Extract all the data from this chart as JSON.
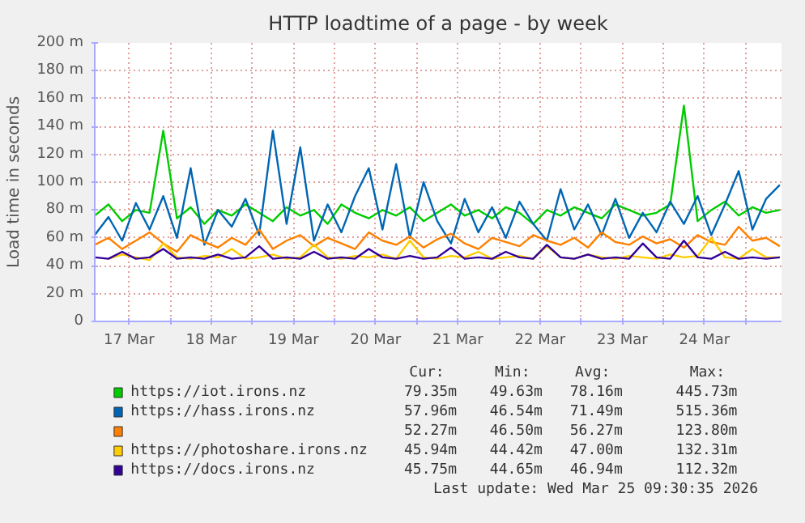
{
  "chart_data": {
    "type": "line",
    "title": "HTTP loadtime of a page - by week",
    "ylabel": "Load time in seconds",
    "x": [
      "2026-03-17T02:00",
      "2026-03-17T06:00",
      "2026-03-17T10:00",
      "2026-03-17T14:00",
      "2026-03-17T18:00",
      "2026-03-17T22:00",
      "2026-03-18T02:00",
      "2026-03-18T06:00",
      "2026-03-18T10:00",
      "2026-03-18T14:00",
      "2026-03-18T18:00",
      "2026-03-18T22:00",
      "2026-03-19T02:00",
      "2026-03-19T06:00",
      "2026-03-19T10:00",
      "2026-03-19T14:00",
      "2026-03-19T18:00",
      "2026-03-19T22:00",
      "2026-03-20T02:00",
      "2026-03-20T06:00",
      "2026-03-20T10:00",
      "2026-03-20T14:00",
      "2026-03-20T18:00",
      "2026-03-20T22:00",
      "2026-03-21T02:00",
      "2026-03-21T06:00",
      "2026-03-21T10:00",
      "2026-03-21T14:00",
      "2026-03-21T18:00",
      "2026-03-21T22:00",
      "2026-03-22T02:00",
      "2026-03-22T06:00",
      "2026-03-22T10:00",
      "2026-03-22T14:00",
      "2026-03-22T18:00",
      "2026-03-22T22:00",
      "2026-03-23T02:00",
      "2026-03-23T06:00",
      "2026-03-23T10:00",
      "2026-03-23T14:00",
      "2026-03-23T18:00",
      "2026-03-23T22:00",
      "2026-03-24T02:00",
      "2026-03-24T06:00",
      "2026-03-24T10:00",
      "2026-03-24T14:00",
      "2026-03-24T18:00",
      "2026-03-24T22:00",
      "2026-03-25T02:00",
      "2026-03-25T06:00",
      "2026-03-25T10:00"
    ],
    "series": [
      {
        "name": "https://iot.irons.nz",
        "color": "#00cc00",
        "values": [
          76,
          84,
          72,
          80,
          78,
          137,
          74,
          82,
          70,
          80,
          76,
          84,
          78,
          72,
          82,
          76,
          80,
          70,
          84,
          78,
          74,
          80,
          76,
          82,
          72,
          78,
          84,
          76,
          80,
          74,
          82,
          78,
          70,
          80,
          76,
          82,
          78,
          74,
          84,
          80,
          76,
          78,
          84,
          155,
          72,
          80,
          86,
          76,
          82,
          78,
          80
        ]
      },
      {
        "name": "https://hass.irons.nz",
        "color": "#0066b3",
        "values": [
          62,
          75,
          58,
          85,
          66,
          90,
          60,
          110,
          55,
          80,
          68,
          88,
          62,
          137,
          70,
          125,
          58,
          84,
          64,
          90,
          110,
          66,
          113,
          60,
          100,
          72,
          56,
          88,
          64,
          82,
          60,
          86,
          70,
          58,
          95,
          66,
          84,
          62,
          88,
          60,
          78,
          64,
          86,
          70,
          90,
          62,
          84,
          108,
          66,
          88,
          98
        ]
      },
      {
        "color": "#ff8000",
        "values": [
          55,
          60,
          52,
          58,
          64,
          56,
          50,
          62,
          57,
          53,
          60,
          55,
          66,
          52,
          58,
          62,
          54,
          60,
          56,
          52,
          64,
          58,
          55,
          61,
          53,
          59,
          63,
          56,
          52,
          60,
          57,
          54,
          62,
          58,
          55,
          60,
          53,
          64,
          57,
          55,
          61,
          56,
          59,
          53,
          62,
          57,
          55,
          68,
          58,
          60,
          54
        ]
      },
      {
        "name": "https://photoshare.irons.nz",
        "color": "#ffcc00",
        "values": [
          null,
          45,
          48,
          46,
          44,
          56,
          46,
          45,
          47,
          46,
          52,
          45,
          46,
          48,
          45,
          46,
          55,
          46,
          45,
          47,
          46,
          48,
          45,
          58,
          46,
          45,
          47,
          46,
          50,
          45,
          46,
          47,
          45,
          54,
          46,
          45,
          48,
          46,
          45,
          47,
          46,
          45,
          48,
          46,
          47,
          60,
          46,
          45,
          52,
          46,
          46
        ]
      },
      {
        "name": "https://docs.irons.nz",
        "color": "#330099",
        "values": [
          46,
          45,
          50,
          45,
          46,
          52,
          45,
          46,
          45,
          48,
          45,
          46,
          54,
          45,
          46,
          45,
          50,
          45,
          46,
          45,
          52,
          46,
          45,
          47,
          45,
          46,
          53,
          45,
          46,
          45,
          50,
          46,
          45,
          55,
          46,
          45,
          48,
          45,
          46,
          45,
          56,
          46,
          45,
          58,
          46,
          45,
          50,
          45,
          46,
          45,
          46
        ]
      }
    ],
    "xlim": [
      "2026-03-17T02:00",
      "2026-03-25T10:30"
    ],
    "xticks": [
      {
        "value": "2026-03-17T12:00",
        "label": "17 Mar"
      },
      {
        "value": "2026-03-18T00:00",
        "label": null
      },
      {
        "value": "2026-03-18T12:00",
        "label": "18 Mar"
      },
      {
        "value": "2026-03-19T00:00",
        "label": null
      },
      {
        "value": "2026-03-19T12:00",
        "label": "19 Mar"
      },
      {
        "value": "2026-03-20T00:00",
        "label": null
      },
      {
        "value": "2026-03-20T12:00",
        "label": "20 Mar"
      },
      {
        "value": "2026-03-21T00:00",
        "label": null
      },
      {
        "value": "2026-03-21T12:00",
        "label": "21 Mar"
      },
      {
        "value": "2026-03-22T00:00",
        "label": null
      },
      {
        "value": "2026-03-22T12:00",
        "label": "22 Mar"
      },
      {
        "value": "2026-03-23T00:00",
        "label": null
      },
      {
        "value": "2026-03-23T12:00",
        "label": "23 Mar"
      },
      {
        "value": "2026-03-24T00:00",
        "label": null
      },
      {
        "value": "2026-03-24T12:00",
        "label": "24 Mar"
      },
      {
        "value": "2026-03-25T00:00",
        "label": null
      }
    ],
    "ylim": [
      0,
      200
    ],
    "yticks": [
      0,
      {
        "value": 20,
        "label": "20 m"
      },
      {
        "value": 40,
        "label": "40 m"
      },
      {
        "value": 60,
        "label": "60 m"
      },
      {
        "value": 80,
        "label": "80 m"
      },
      {
        "value": 100,
        "label": "100 m"
      },
      {
        "value": 120,
        "label": "120 m"
      },
      {
        "value": 140,
        "label": "140 m"
      },
      {
        "value": 160,
        "label": "160 m"
      },
      {
        "value": 180,
        "label": "180 m"
      },
      {
        "value": 200,
        "label": "200 m"
      }
    ],
    "grid": true,
    "legend": "bottom",
    "marker": "none",
    "line_style": "solid",
    "annotations": [
      "Cur:",
      "Min:",
      "Avg:",
      "Max:",
      "79.35m",
      "49.63m",
      "78.16m",
      "445.73m",
      "57.96m",
      "46.54m",
      "71.49m",
      "515.36m",
      "52.27m",
      "46.50m",
      "56.27m",
      "123.80m",
      "45.94m",
      "44.42m",
      "47.00m",
      "132.31m",
      "45.75m",
      "44.65m",
      "46.94m",
      "112.32m",
      "Last update: Wed Mar 25 09:30:35 2026"
    ]
  }
}
